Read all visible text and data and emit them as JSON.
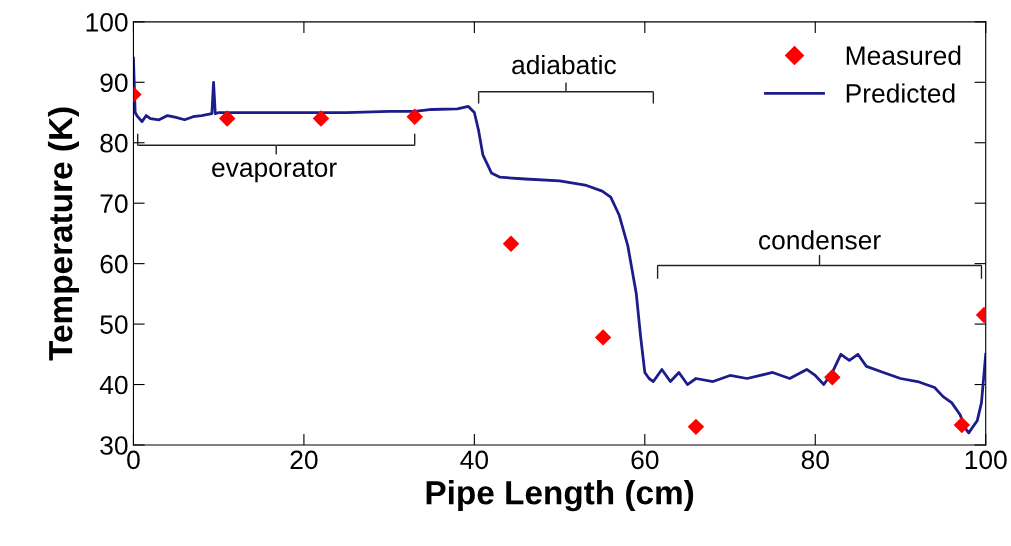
{
  "chart_data": {
    "type": "line",
    "xlabel": "Pipe Length (cm)",
    "ylabel": "Temperature (K)",
    "xlim": [
      0,
      100
    ],
    "ylim": [
      30,
      100
    ],
    "xticks": [
      0,
      20,
      40,
      60,
      80,
      100
    ],
    "yticks": [
      30,
      40,
      50,
      60,
      70,
      80,
      90,
      100
    ],
    "grid": false,
    "legend": "top right",
    "annotations": [
      "evaporator",
      "adiabatic",
      "condenser"
    ],
    "series": [
      {
        "name": "Measured",
        "type": "scatter",
        "marker": "diamond",
        "color": "#ff0000",
        "x": [
          0,
          11,
          22,
          33,
          44.3,
          55.1,
          66,
          82,
          97.2,
          99.8
        ],
        "values": [
          88,
          84,
          84,
          84.3,
          63.3,
          47.8,
          33,
          41.2,
          33.3,
          51.5
        ]
      },
      {
        "name": "Predicted",
        "type": "line",
        "marker": "none",
        "line_style": "solid",
        "color": "#1c1c8a",
        "x": [
          0,
          0.2,
          0.4,
          1,
          1.5,
          2,
          3,
          4,
          5,
          6,
          7,
          8,
          9.2,
          9.4,
          9.6,
          10,
          15,
          20,
          25,
          30,
          33,
          35,
          38,
          39.3,
          40,
          40.5,
          41,
          42,
          43,
          46,
          50,
          53,
          55,
          56,
          57,
          58,
          59,
          59.5,
          60,
          60.5,
          61,
          62,
          63,
          64,
          65,
          66,
          68,
          70,
          72,
          75,
          77,
          79,
          80,
          81,
          82,
          83,
          84,
          85,
          86,
          88,
          90,
          92,
          94,
          95,
          96,
          97,
          97.5,
          98,
          99,
          99.5,
          100
        ],
        "values": [
          94,
          85,
          84.5,
          83.5,
          84.5,
          84,
          83.8,
          84.5,
          84.2,
          83.8,
          84.3,
          84.5,
          84.8,
          90,
          84.8,
          85,
          85,
          85,
          85,
          85.2,
          85.2,
          85.5,
          85.6,
          86,
          85,
          82,
          78,
          75,
          74.3,
          74,
          73.7,
          73,
          72,
          71,
          68,
          63,
          55,
          48,
          42,
          41,
          40.5,
          42.5,
          40.5,
          42,
          40,
          41,
          40.5,
          41.5,
          41,
          42,
          41,
          42.5,
          41.5,
          40,
          42,
          45,
          44,
          45,
          43,
          42,
          41,
          40.5,
          39.5,
          38,
          37,
          35,
          33,
          32,
          34,
          37,
          45
        ]
      }
    ]
  }
}
